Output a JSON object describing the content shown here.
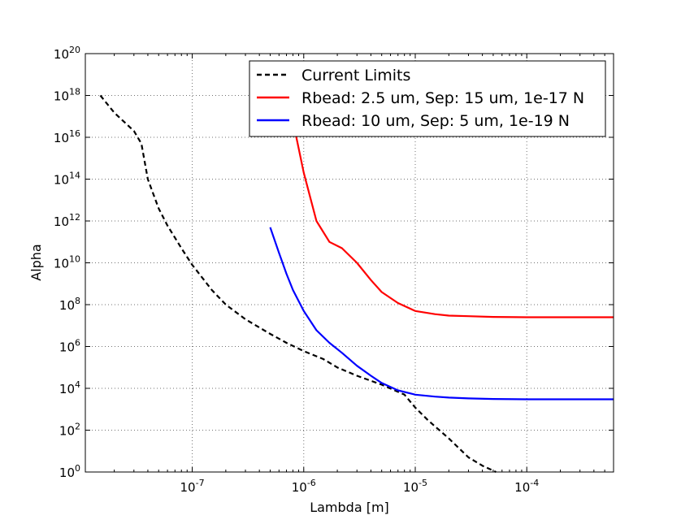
{
  "chart_data": {
    "type": "line",
    "xlabel": "Lambda [m]",
    "ylabel": "Alpha",
    "xscale": "log",
    "yscale": "log",
    "xlim": [
      1.1e-08,
      0.0006
    ],
    "ylim": [
      1,
      1e+20
    ],
    "grid": true,
    "legend_position": "top-right",
    "x_ticks": [
      {
        "base": "10",
        "exp": "-7",
        "value": 1e-07
      },
      {
        "base": "10",
        "exp": "-6",
        "value": 1e-06
      },
      {
        "base": "10",
        "exp": "-5",
        "value": 1e-05
      },
      {
        "base": "10",
        "exp": "-4",
        "value": 0.0001
      }
    ],
    "y_ticks": [
      {
        "base": "10",
        "exp": "0",
        "value": 1
      },
      {
        "base": "10",
        "exp": "2",
        "value": 100.0
      },
      {
        "base": "10",
        "exp": "4",
        "value": 10000.0
      },
      {
        "base": "10",
        "exp": "6",
        "value": 1000000.0
      },
      {
        "base": "10",
        "exp": "8",
        "value": 100000000.0
      },
      {
        "base": "10",
        "exp": "10",
        "value": 10000000000.0
      },
      {
        "base": "10",
        "exp": "12",
        "value": 1000000000000.0
      },
      {
        "base": "10",
        "exp": "14",
        "value": 100000000000000.0
      },
      {
        "base": "10",
        "exp": "16",
        "value": 1e+16
      },
      {
        "base": "10",
        "exp": "18",
        "value": 1e+18
      },
      {
        "base": "10",
        "exp": "20",
        "value": 1e+20
      }
    ],
    "series": [
      {
        "name": "Current Limits",
        "color": "#000000",
        "style": "dashed",
        "x": [
          1.5e-08,
          2e-08,
          3e-08,
          3.5e-08,
          4e-08,
          5e-08,
          6e-08,
          8e-08,
          1e-07,
          1.5e-07,
          2e-07,
          3e-07,
          5e-07,
          7e-07,
          1e-06,
          1.5e-06,
          2e-06,
          3e-06,
          5e-06,
          8e-06,
          1e-05,
          1.3e-05,
          2e-05,
          3e-05,
          4e-05,
          5.3e-05
        ],
        "y": [
          1e+18,
          1.5e+17,
          2e+16,
          5000000000000000.0,
          100000000000000.0,
          4000000000000.0,
          600000000000.0,
          50000000000.0,
          8000000000.0,
          500000000.0,
          100000000.0,
          20000000.0,
          4000000.0,
          1500000.0,
          600000.0,
          250000.0,
          100000.0,
          40000.0,
          15000.0,
          5000.0,
          1200.0,
          300,
          40,
          5,
          2,
          1
        ]
      },
      {
        "name": "Rbead: 2.5 um, Sep: 15 um, 1e-17 N",
        "color": "#ff0000",
        "style": "solid",
        "x": [
          6e-07,
          7e-07,
          8e-07,
          1e-06,
          1.3e-06,
          1.7e-06,
          2.2e-06,
          3e-06,
          4e-06,
          5e-06,
          7e-06,
          1e-05,
          1.5e-05,
          2e-05,
          3e-05,
          5e-05,
          0.0001,
          0.0002,
          0.0003,
          0.0006
        ],
        "y": [
          2e+19,
          1e+18,
          6e+16,
          200000000000000.0,
          1000000000000.0,
          100000000000.0,
          50000000000.0,
          10000000000.0,
          1500000000.0,
          400000000.0,
          120000000.0,
          50000000.0,
          35000000.0,
          30000000.0,
          28000000.0,
          26000000.0,
          25000000.0,
          25000000.0,
          25000000.0,
          25000000.0
        ]
      },
      {
        "name": "Rbead: 10 um, Sep: 5 um, 1e-19 N",
        "color": "#0000ff",
        "style": "solid",
        "x": [
          5e-07,
          6e-07,
          7e-07,
          8e-07,
          1e-06,
          1.3e-06,
          1.7e-06,
          2.2e-06,
          3e-06,
          4e-06,
          5e-06,
          7e-06,
          1e-05,
          1.5e-05,
          2e-05,
          3e-05,
          5e-05,
          0.0001,
          0.0002,
          0.0006
        ],
        "y": [
          500000000000.0,
          30000000000.0,
          3000000000.0,
          500000000.0,
          50000000.0,
          6000000.0,
          1500000.0,
          500000.0,
          120000.0,
          40000.0,
          18000.0,
          8000.0,
          5000.0,
          4000.0,
          3600.0,
          3300.0,
          3100.0,
          3000.0,
          3000.0,
          3000.0
        ]
      }
    ]
  }
}
